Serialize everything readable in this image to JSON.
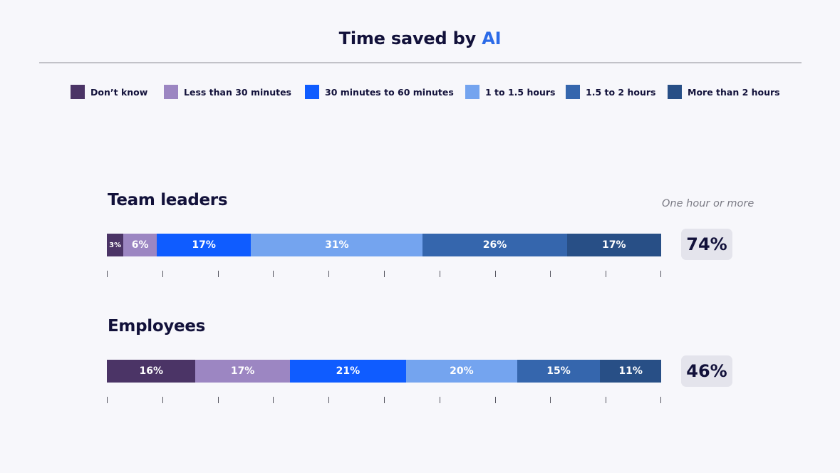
{
  "title": {
    "prefix": "Time saved by ",
    "accent": "AI"
  },
  "colors": {
    "dont_know": "#4b3466",
    "less_30": "#9c86c2",
    "m30_60": "#0f5cff",
    "h1_15": "#74a4ef",
    "h15_2": "#3566ad",
    "more_2": "#284f86",
    "accent": "#2c6be8"
  },
  "legend": [
    {
      "label": "Don’t know",
      "color": "#4b3466"
    },
    {
      "label": "Less than 30 minutes",
      "color": "#9c86c2"
    },
    {
      "label": "30 minutes to 60 minutes",
      "color": "#0f5cff"
    },
    {
      "label": "1 to 1.5 hours",
      "color": "#74a4ef"
    },
    {
      "label": "1.5 to 2 hours",
      "color": "#3566ad"
    },
    {
      "label": "More than 2 hours",
      "color": "#284f86"
    }
  ],
  "note": "One hour or more",
  "groups": [
    {
      "title": "Team leaders",
      "total": "74%",
      "segments": [
        {
          "label": "3%",
          "value": 3
        },
        {
          "label": "6%",
          "value": 6
        },
        {
          "label": "17%",
          "value": 17
        },
        {
          "label": "31%",
          "value": 31
        },
        {
          "label": "26%",
          "value": 26
        },
        {
          "label": "17%",
          "value": 17
        }
      ]
    },
    {
      "title": "Employees",
      "total": "46%",
      "segments": [
        {
          "label": "16%",
          "value": 16
        },
        {
          "label": "17%",
          "value": 17
        },
        {
          "label": "21%",
          "value": 21
        },
        {
          "label": "20%",
          "value": 20
        },
        {
          "label": "15%",
          "value": 15
        },
        {
          "label": "11%",
          "value": 11
        }
      ]
    }
  ],
  "chart_data": {
    "type": "bar",
    "orientation": "horizontal",
    "stacked": true,
    "title": "Time saved by AI",
    "categories": [
      "Team leaders",
      "Employees"
    ],
    "series": [
      {
        "name": "Don’t know",
        "values": [
          3,
          16
        ]
      },
      {
        "name": "Less than 30 minutes",
        "values": [
          6,
          17
        ]
      },
      {
        "name": "30 minutes to 60 minutes",
        "values": [
          17,
          21
        ]
      },
      {
        "name": "1 to 1.5 hours",
        "values": [
          31,
          20
        ]
      },
      {
        "name": "1.5 to 2 hours",
        "values": [
          26,
          15
        ]
      },
      {
        "name": "More than 2 hours",
        "values": [
          17,
          11
        ]
      }
    ],
    "annotations": {
      "label": "One hour or more",
      "values": [
        74,
        46
      ],
      "unit": "%"
    },
    "xlim": [
      0,
      100
    ],
    "legend_position": "top",
    "grid": false,
    "xlabel": "",
    "ylabel": ""
  }
}
